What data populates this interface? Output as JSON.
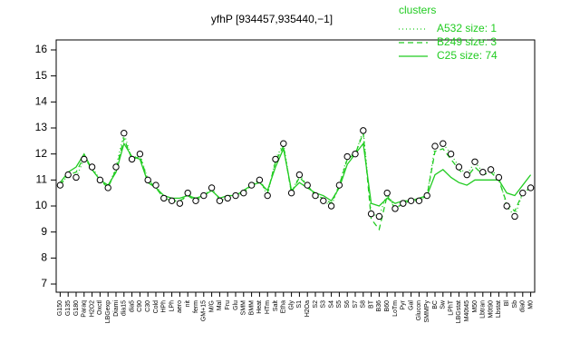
{
  "chart_data": {
    "type": "line",
    "title": "yfhP [934457,935440,−1]",
    "legend_title": "clusters",
    "legend": "top-right",
    "categories": [
      "G150",
      "G135",
      "G180",
      "Paraq",
      "H2O2",
      "Oxctl",
      "LBGexp",
      "Diami",
      "dia15",
      "dia5",
      "C90",
      "C30",
      "Cold",
      "HPh",
      "LPh",
      "aero",
      "nit",
      "ferm",
      "GM+15",
      "M/G",
      "Mal",
      "Fru",
      "Glu",
      "SMM",
      "BMM",
      "Heat",
      "HTm",
      "Salt",
      "Etha",
      "Gly",
      "S1",
      "H2Oa",
      "S2",
      "S3",
      "S4",
      "S5",
      "S6",
      "S7",
      "S8",
      "BT",
      "B36",
      "B60",
      "LoTm",
      "Pyr",
      "Gal",
      "Glucon",
      "SMMPy",
      "BC",
      "Sw",
      "LPhT",
      "LBGstat",
      "M40t45",
      "M50",
      "Lbtran",
      "M0t90",
      "Lbstat",
      "Bl",
      "Sb",
      "dia0",
      "M0"
    ],
    "values": [
      10.8,
      11.2,
      11.1,
      11.8,
      11.5,
      11.0,
      10.7,
      11.5,
      12.8,
      11.8,
      12.0,
      11.0,
      10.8,
      10.3,
      10.2,
      10.1,
      10.5,
      10.2,
      10.4,
      10.7,
      10.2,
      10.3,
      10.4,
      10.5,
      10.8,
      11.0,
      10.4,
      11.8,
      12.4,
      10.5,
      11.2,
      10.8,
      10.4,
      10.2,
      10.0,
      10.8,
      11.9,
      12.0,
      12.9,
      9.7,
      9.6,
      10.5,
      9.9,
      10.1,
      10.2,
      10.2,
      10.4,
      12.3,
      12.4,
      12.0,
      11.5,
      11.2,
      11.7,
      11.3,
      11.4,
      11.1,
      10.0,
      9.6,
      10.5,
      10.7
    ],
    "series": [
      {
        "name": "A532 size: 1",
        "color": "#22cc22",
        "dash": "dotted",
        "values": [
          10.8,
          11.2,
          11.1,
          11.8,
          11.5,
          11.0,
          10.7,
          11.5,
          12.8,
          11.8,
          12.0,
          11.0,
          10.8,
          10.3,
          10.2,
          10.1,
          10.5,
          10.2,
          10.4,
          10.7,
          10.2,
          10.3,
          10.4,
          10.5,
          10.8,
          11.0,
          10.4,
          11.8,
          12.4,
          10.5,
          11.2,
          10.8,
          10.4,
          10.2,
          10.0,
          10.8,
          11.9,
          12.0,
          12.9,
          9.7,
          9.6,
          10.5,
          9.9,
          10.1,
          10.2,
          10.2,
          10.4,
          12.3,
          12.4,
          12.0,
          11.5,
          11.2,
          11.7,
          11.3,
          11.4,
          11.1,
          10.0,
          9.6,
          10.5,
          10.7
        ]
      },
      {
        "name": "B249 size: 3",
        "color": "#22cc22",
        "dash": "dashed",
        "values": [
          10.8,
          11.2,
          11.3,
          11.9,
          11.4,
          11.0,
          10.7,
          11.4,
          12.6,
          11.8,
          11.9,
          11.0,
          10.7,
          10.3,
          10.2,
          10.2,
          10.4,
          10.2,
          10.4,
          10.6,
          10.3,
          10.3,
          10.4,
          10.5,
          10.8,
          11.0,
          10.5,
          11.7,
          12.3,
          10.5,
          11.1,
          10.8,
          10.4,
          10.3,
          10.1,
          10.8,
          11.8,
          12.0,
          12.8,
          9.5,
          9.1,
          10.4,
          9.9,
          10.1,
          10.2,
          10.2,
          10.4,
          12.1,
          12.2,
          11.8,
          11.4,
          11.1,
          11.5,
          11.2,
          11.3,
          11.0,
          10.1,
          9.8,
          10.5,
          10.7
        ]
      },
      {
        "name": "C25 size: 74",
        "color": "#22cc22",
        "dash": "solid",
        "values": [
          10.9,
          11.3,
          11.5,
          12.0,
          11.4,
          11.0,
          10.8,
          11.3,
          12.4,
          11.9,
          11.8,
          10.9,
          10.7,
          10.4,
          10.3,
          10.3,
          10.4,
          10.3,
          10.4,
          10.6,
          10.3,
          10.4,
          10.4,
          10.6,
          10.8,
          10.9,
          10.6,
          11.5,
          12.2,
          10.6,
          10.9,
          10.7,
          10.5,
          10.4,
          10.2,
          10.7,
          11.6,
          12.0,
          12.4,
          10.1,
          10.0,
          10.3,
          10.1,
          10.2,
          10.2,
          10.3,
          10.4,
          11.2,
          11.4,
          11.1,
          10.9,
          10.8,
          11.0,
          11.0,
          11.0,
          11.0,
          10.5,
          10.4,
          10.8,
          11.2
        ]
      }
    ],
    "ylim": [
      7,
      16
    ],
    "yticks": [
      7,
      8,
      9,
      10,
      11,
      12,
      13,
      14,
      15,
      16
    ]
  }
}
